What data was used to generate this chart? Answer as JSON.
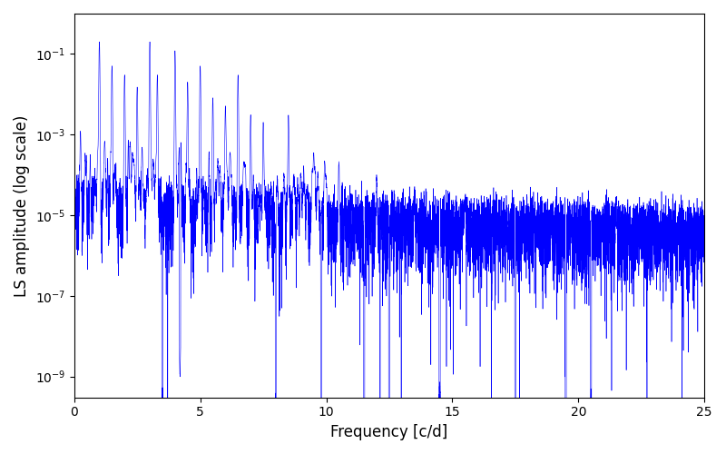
{
  "title": "",
  "xlabel": "Frequency [c/d]",
  "ylabel": "LS amplitude (log scale)",
  "xlim": [
    0,
    25
  ],
  "ylim": [
    3e-10,
    1.0
  ],
  "yticks": [
    1e-09,
    1e-07,
    1e-05,
    0.001,
    0.1
  ],
  "line_color": "#0000ff",
  "background_color": "#ffffff",
  "figsize": [
    8.0,
    5.0
  ],
  "dpi": 100,
  "freq_max": 25.0,
  "n_points": 8000,
  "seed": 42
}
